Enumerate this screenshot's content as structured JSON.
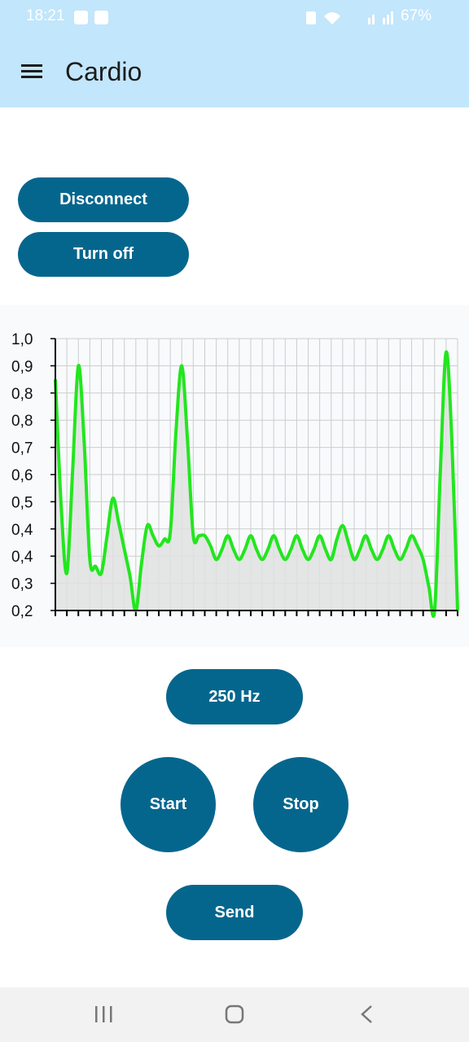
{
  "status_bar": {
    "time": "18:21",
    "battery": "67%"
  },
  "app_bar": {
    "title": "Cardio"
  },
  "buttons": {
    "disconnect": "Disconnect",
    "turn_off": "Turn off",
    "rate": "250 Hz",
    "start": "Start",
    "stop": "Stop",
    "send": "Send"
  },
  "chart_data": {
    "type": "line",
    "x": [
      0,
      1,
      2,
      3,
      4,
      5,
      6,
      7,
      8,
      9,
      10,
      11,
      12,
      13,
      14,
      15,
      16,
      17,
      18,
      19,
      20,
      21,
      22,
      23,
      24,
      25,
      26,
      27,
      28,
      29,
      30,
      31,
      32,
      33,
      34,
      35,
      36,
      37,
      38,
      39,
      40,
      41,
      42,
      43,
      44,
      45,
      46,
      47,
      48,
      49,
      50,
      51,
      52,
      53,
      54,
      55,
      56,
      57,
      58,
      59,
      60,
      61,
      62,
      63,
      64,
      65,
      66,
      67,
      68,
      69,
      70
    ],
    "series": [
      {
        "color": "#22e61e",
        "values": [
          0.88,
          0.51,
          0.31,
          0.61,
          0.92,
          0.7,
          0.35,
          0.33,
          0.31,
          0.42,
          0.53,
          0.46,
          0.38,
          0.3,
          0.2,
          0.34,
          0.45,
          0.42,
          0.39,
          0.41,
          0.43,
          0.73,
          0.92,
          0.7,
          0.42,
          0.42,
          0.42,
          0.39,
          0.35,
          0.38,
          0.42,
          0.38,
          0.35,
          0.38,
          0.42,
          0.38,
          0.35,
          0.38,
          0.42,
          0.38,
          0.35,
          0.38,
          0.42,
          0.38,
          0.35,
          0.38,
          0.42,
          0.38,
          0.35,
          0.41,
          0.45,
          0.4,
          0.35,
          0.38,
          0.42,
          0.38,
          0.35,
          0.38,
          0.42,
          0.38,
          0.35,
          0.38,
          0.42,
          0.39,
          0.35,
          0.27,
          0.2,
          0.61,
          0.96,
          0.7,
          0.2
        ]
      }
    ],
    "xlim": [
      0,
      70
    ],
    "xticks": [
      0,
      2,
      4,
      6,
      8,
      10,
      12,
      14,
      16,
      18,
      20,
      22,
      24,
      26,
      28,
      30,
      32,
      34,
      36,
      38,
      40,
      42,
      44,
      46,
      48,
      50,
      52,
      54,
      56,
      58,
      60,
      62,
      64,
      66,
      68,
      70
    ],
    "ylim": [
      0.2,
      1.0
    ],
    "yticks": [
      {
        "value": 1.0,
        "label": "1,0"
      },
      {
        "value": 0.92,
        "label": "0,9"
      },
      {
        "value": 0.84,
        "label": "0,8"
      },
      {
        "value": 0.76,
        "label": "0,8"
      },
      {
        "value": 0.68,
        "label": "0,7"
      },
      {
        "value": 0.6,
        "label": "0,6"
      },
      {
        "value": 0.52,
        "label": "0,5"
      },
      {
        "value": 0.44,
        "label": "0,4"
      },
      {
        "value": 0.36,
        "label": "0,4"
      },
      {
        "value": 0.28,
        "label": "0,3"
      },
      {
        "value": 0.2,
        "label": "0,2"
      }
    ],
    "grid": true,
    "area_fill": "#e0e0e0"
  }
}
